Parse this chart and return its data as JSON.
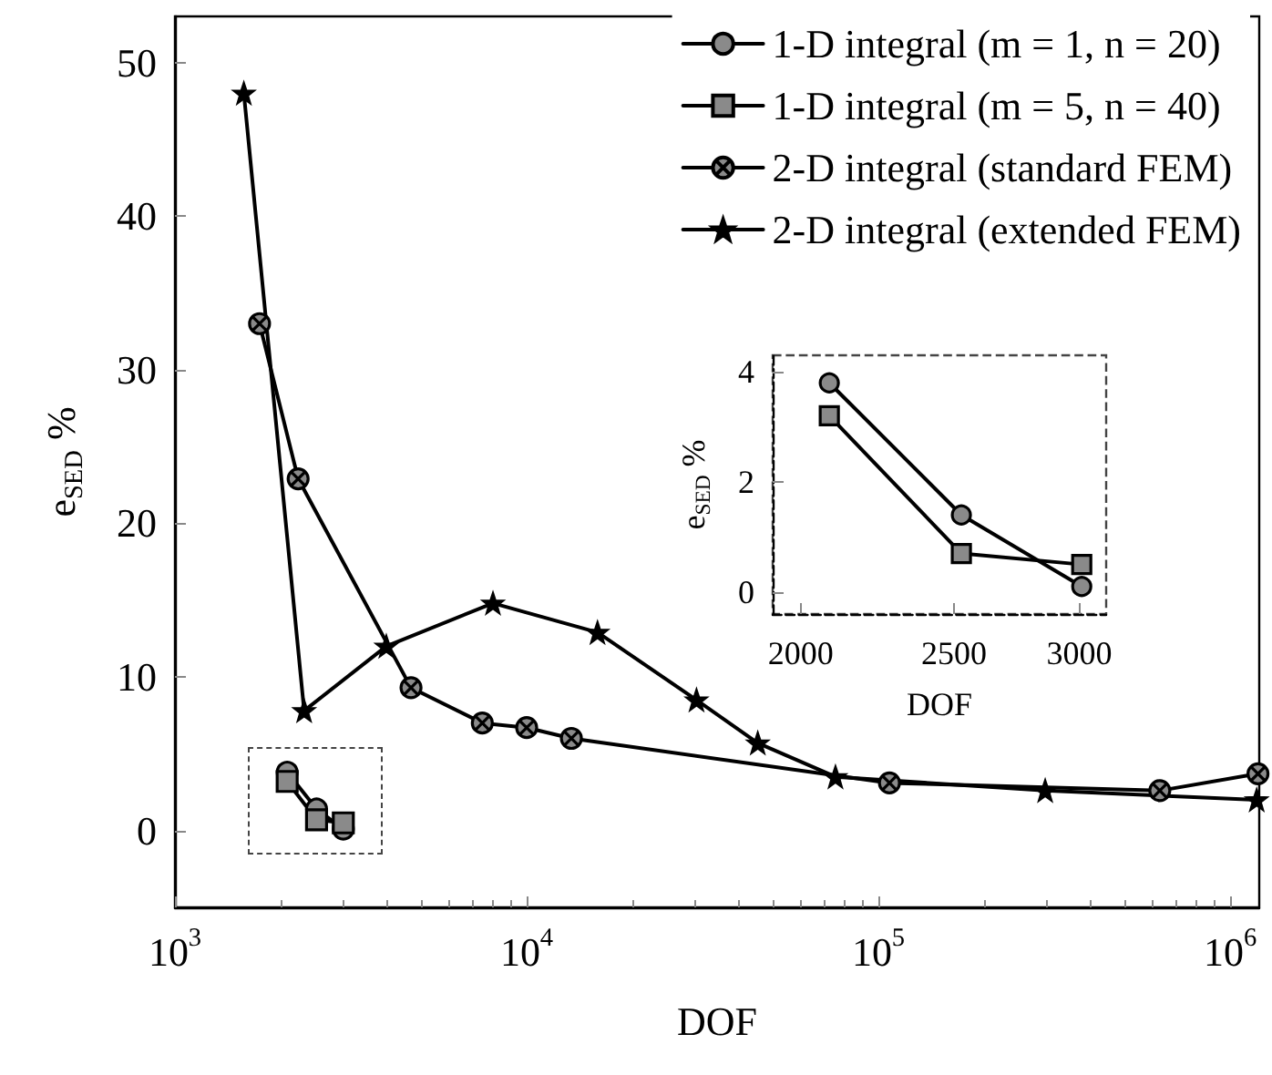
{
  "chart_data": [
    {
      "type": "line",
      "xlabel": "DOF",
      "ylabel": "e$_{SED}$ %",
      "log": "x",
      "xlim": [
        1000,
        1210000
      ],
      "ylim": [
        -5,
        53
      ],
      "xticks": [
        {
          "value": 1000,
          "label": "10$^{3}$"
        },
        {
          "value": 10000,
          "label": "10$^{4}$"
        },
        {
          "value": 100000,
          "label": "10$^{5}$"
        },
        {
          "value": 1000000,
          "label": "10$^{6}$"
        }
      ],
      "yticks": [
        0,
        10,
        20,
        30,
        40,
        50
      ],
      "legend": "top right",
      "series": [
        {
          "name": "1-D integral (m = 1, n = 20)",
          "color": "#000000",
          "marker": "circle",
          "x": [
            2085,
            2527,
            3011
          ],
          "values": [
            3.8,
            1.4,
            0.1
          ]
        },
        {
          "name": "1-D integral (m = 5, n = 40)",
          "color": "#000000",
          "marker": "square",
          "x": [
            2085,
            2527,
            3011
          ],
          "values": [
            3.2,
            0.7,
            0.5
          ]
        },
        {
          "name": "2-D integral (standard FEM)",
          "color": "#000000",
          "marker": "cross",
          "x": [
            1740,
            2240,
            4690,
            7480,
            10000,
            13400,
            107500,
            631000,
            1200000
          ],
          "values": [
            33.0,
            22.9,
            9.3,
            7.0,
            6.7,
            6.0,
            3.1,
            2.6,
            3.7
          ]
        },
        {
          "name": "2-D integral (extended FEM)",
          "color": "#000000",
          "marker": "star",
          "x": [
            1570,
            2330,
            3990,
            8020,
            15900,
            30400,
            45400,
            75500,
            298000,
            1190000
          ],
          "values": [
            48.0,
            7.8,
            12.0,
            14.8,
            12.9,
            8.5,
            5.7,
            3.5,
            2.6,
            2.0
          ]
        }
      ]
    },
    {
      "type": "line",
      "xlabel": "DOF",
      "ylabel": "e$_{SED}$ %",
      "log": "x",
      "xlim": [
        1920,
        3120
      ],
      "ylim": [
        -0.4,
        4.3
      ],
      "xticks": [
        2000,
        2500,
        3000
      ],
      "yticks": [
        0,
        2,
        4
      ],
      "series": [
        {
          "color": "#000000",
          "marker": "circle",
          "x": [
            2085,
            2527,
            3011
          ],
          "values": [
            3.8,
            1.4,
            0.1
          ]
        },
        {
          "color": "#000000",
          "marker": "square",
          "x": [
            2085,
            2527,
            3011
          ],
          "values": [
            3.2,
            0.7,
            0.5
          ]
        }
      ]
    }
  ]
}
